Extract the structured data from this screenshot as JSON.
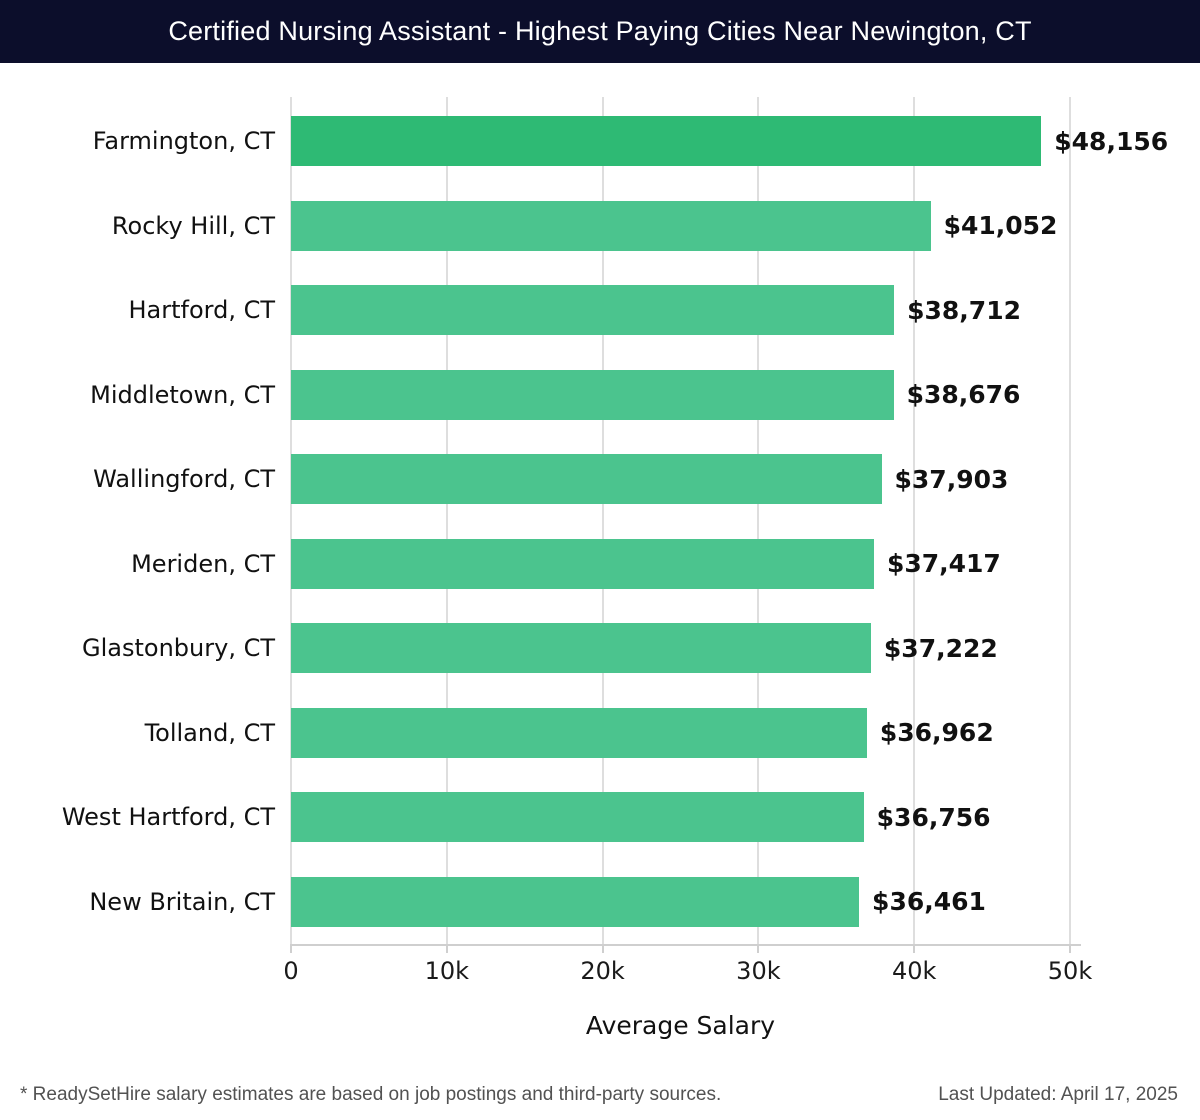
{
  "header": {
    "title": "Certified Nursing Assistant - Highest Paying Cities Near Newington, CT",
    "background_color": "#0c0e2b",
    "text_color": "#ffffff"
  },
  "chart_data": {
    "type": "bar",
    "orientation": "horizontal",
    "title": "Certified Nursing Assistant - Highest Paying Cities Near Newington, CT",
    "categories": [
      "Farmington, CT",
      "Rocky Hill, CT",
      "Hartford, CT",
      "Middletown, CT",
      "Wallingford, CT",
      "Meriden, CT",
      "Glastonbury, CT",
      "Tolland, CT",
      "West Hartford, CT",
      "New Britain, CT"
    ],
    "values": [
      48156,
      41052,
      38712,
      38676,
      37903,
      37417,
      37222,
      36962,
      36756,
      36461
    ],
    "value_labels": [
      "$48,156",
      "$41,052",
      "$38,712",
      "$38,676",
      "$37,903",
      "$37,417",
      "$37,222",
      "$36,962",
      "$36,756",
      "$36,461"
    ],
    "xlabel": "Average Salary",
    "ylabel": "",
    "xlim": [
      0,
      50000
    ],
    "x_ticks": [
      0,
      10000,
      20000,
      30000,
      40000,
      50000
    ],
    "x_tick_labels": [
      "0",
      "10k",
      "20k",
      "30k",
      "40k",
      "50k"
    ],
    "grid": true,
    "legend": false,
    "highlight_index": 0,
    "highlight_color": "#2eba74",
    "bar_color": "#4bc48e",
    "gridline_color": "#dedede"
  },
  "footer": {
    "note": "* ReadySetHire salary estimates are based on job postings and third-party sources.",
    "last_updated": "Last Updated: April 17, 2025"
  }
}
